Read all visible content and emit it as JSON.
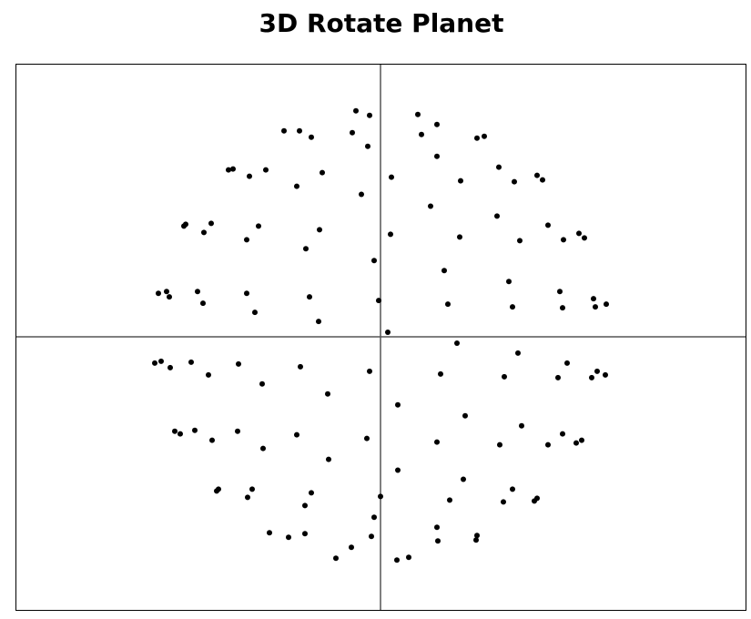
{
  "title": "3D Rotate Planet",
  "colors": {
    "background": "#ffffff",
    "frame": "#000000",
    "axes": "#555555",
    "points": "#000000"
  },
  "chart_data": {
    "type": "scatter",
    "title": "3D Rotate Planet",
    "xlabel": "",
    "ylabel": "",
    "xlim": [
      -400,
      400
    ],
    "ylim": [
      -300,
      300
    ],
    "grid": false,
    "legend": "none",
    "axes_crosshair_at_origin": true,
    "series": [
      {
        "points": [
          [
            -27,
            249
          ],
          [
            -12,
            244
          ],
          [
            41,
            245
          ],
          [
            62,
            234
          ],
          [
            -106,
            227
          ],
          [
            -89,
            227
          ],
          [
            -76,
            220
          ],
          [
            -31,
            225
          ],
          [
            -14,
            210
          ],
          [
            45,
            223
          ],
          [
            106,
            219
          ],
          [
            114,
            221
          ],
          [
            -167,
            184
          ],
          [
            -162,
            185
          ],
          [
            -144,
            177
          ],
          [
            -126,
            184
          ],
          [
            -92,
            166
          ],
          [
            -64,
            181
          ],
          [
            -21,
            157
          ],
          [
            12,
            176
          ],
          [
            55,
            144
          ],
          [
            62,
            199
          ],
          [
            88,
            172
          ],
          [
            130,
            187
          ],
          [
            147,
            171
          ],
          [
            172,
            178
          ],
          [
            178,
            173
          ],
          [
            -216,
            122
          ],
          [
            -214,
            124
          ],
          [
            -186,
            125
          ],
          [
            -194,
            115
          ],
          [
            -134,
            122
          ],
          [
            -147,
            107
          ],
          [
            -67,
            118
          ],
          [
            -82,
            97
          ],
          [
            11,
            113
          ],
          [
            87,
            110
          ],
          [
            128,
            133
          ],
          [
            153,
            106
          ],
          [
            184,
            123
          ],
          [
            201,
            107
          ],
          [
            218,
            114
          ],
          [
            224,
            109
          ],
          [
            -7,
            84
          ],
          [
            70,
            73
          ],
          [
            -244,
            48
          ],
          [
            -235,
            50
          ],
          [
            -232,
            44
          ],
          [
            -201,
            50
          ],
          [
            -195,
            37
          ],
          [
            -147,
            48
          ],
          [
            -138,
            27
          ],
          [
            -78,
            44
          ],
          [
            -68,
            17
          ],
          [
            -2,
            40
          ],
          [
            74,
            36
          ],
          [
            141,
            61
          ],
          [
            145,
            33
          ],
          [
            197,
            50
          ],
          [
            200,
            32
          ],
          [
            234,
            42
          ],
          [
            236,
            33
          ],
          [
            248,
            36
          ],
          [
            8,
            5
          ],
          [
            84,
            -7
          ],
          [
            151,
            -18
          ],
          [
            -248,
            -29
          ],
          [
            -241,
            -27
          ],
          [
            -231,
            -34
          ],
          [
            -208,
            -28
          ],
          [
            -189,
            -42
          ],
          [
            -156,
            -30
          ],
          [
            -130,
            -52
          ],
          [
            -88,
            -33
          ],
          [
            -58,
            -63
          ],
          [
            -12,
            -38
          ],
          [
            66,
            -41
          ],
          [
            136,
            -44
          ],
          [
            195,
            -45
          ],
          [
            205,
            -29
          ],
          [
            232,
            -45
          ],
          [
            238,
            -38
          ],
          [
            247,
            -42
          ],
          [
            19,
            -75
          ],
          [
            93,
            -87
          ],
          [
            -226,
            -104
          ],
          [
            -220,
            -107
          ],
          [
            -204,
            -103
          ],
          [
            -185,
            -114
          ],
          [
            -157,
            -104
          ],
          [
            -129,
            -123
          ],
          [
            -92,
            -108
          ],
          [
            -57,
            -135
          ],
          [
            -15,
            -112
          ],
          [
            19,
            -147
          ],
          [
            62,
            -116
          ],
          [
            131,
            -119
          ],
          [
            155,
            -98
          ],
          [
            184,
            -119
          ],
          [
            200,
            -107
          ],
          [
            215,
            -117
          ],
          [
            221,
            -114
          ],
          [
            -180,
            -170
          ],
          [
            -178,
            -168
          ],
          [
            -146,
            -177
          ],
          [
            -141,
            -168
          ],
          [
            -83,
            -186
          ],
          [
            -76,
            -172
          ],
          [
            0,
            -176
          ],
          [
            76,
            -180
          ],
          [
            91,
            -157
          ],
          [
            135,
            -182
          ],
          [
            145,
            -168
          ],
          [
            169,
            -181
          ],
          [
            172,
            -178
          ],
          [
            -122,
            -216
          ],
          [
            -101,
            -221
          ],
          [
            -83,
            -217
          ],
          [
            -49,
            -244
          ],
          [
            -32,
            -232
          ],
          [
            -10,
            -220
          ],
          [
            -7,
            -199
          ],
          [
            18,
            -246
          ],
          [
            31,
            -243
          ],
          [
            62,
            -210
          ],
          [
            63,
            -225
          ],
          [
            106,
            -219
          ],
          [
            105,
            -224
          ]
        ]
      }
    ]
  }
}
